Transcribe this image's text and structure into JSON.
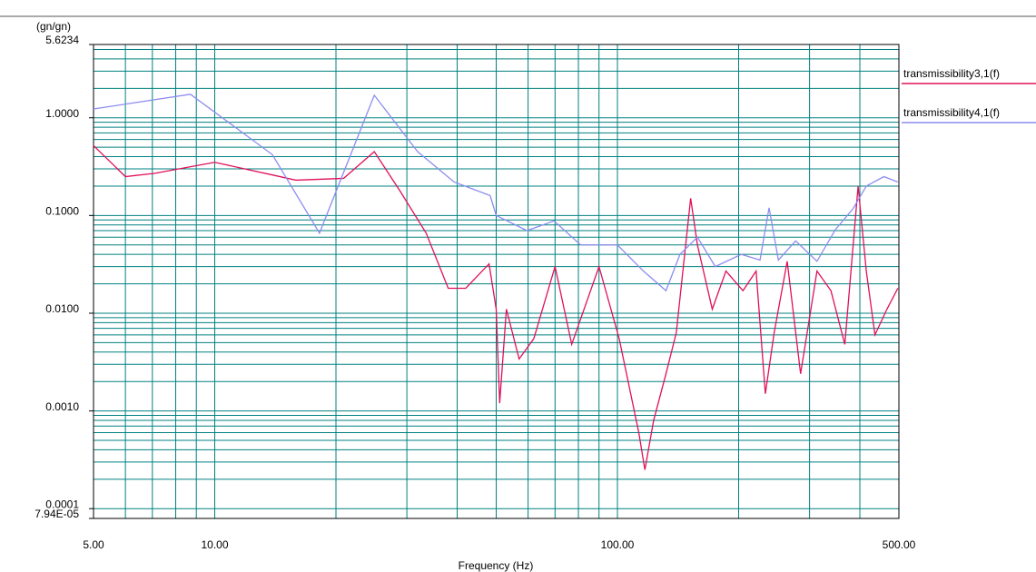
{
  "chart_data": {
    "type": "line",
    "y_label": "(gn/gn)",
    "x_label": "Frequency (Hz)",
    "log_x": true,
    "log_y": true,
    "grid": true,
    "grid_color": "#008080",
    "legend_position": "right",
    "xlim": [
      5,
      500
    ],
    "xticks": [
      {
        "value": 5,
        "label": "5.00"
      },
      {
        "value": 10,
        "label": "10.00"
      },
      {
        "value": 100,
        "label": "100.00"
      },
      {
        "value": 500,
        "label": "500.00"
      }
    ],
    "x_minor_ticks": [
      6,
      7,
      8,
      9,
      20,
      30,
      40,
      50,
      60,
      70,
      80,
      90,
      200,
      300,
      400
    ],
    "ylim": [
      7.94e-05,
      5.6234
    ],
    "yticks": [
      {
        "value": 7.94e-05,
        "label": "7.94E-05"
      },
      {
        "value": 0.0001,
        "label": "0.0001"
      },
      {
        "value": 0.001,
        "label": "0.0010"
      },
      {
        "value": 0.01,
        "label": "0.0100"
      },
      {
        "value": 0.1,
        "label": "0.1000"
      },
      {
        "value": 1,
        "label": "1.0000"
      },
      5.6234
    ],
    "y_minor_ticks": [
      0.0002,
      0.0003,
      0.0004,
      0.0005,
      0.0006,
      0.0007,
      0.0008,
      0.0009,
      0.002,
      0.003,
      0.004,
      0.005,
      0.006,
      0.007,
      0.008,
      0.009,
      0.02,
      0.03,
      0.04,
      0.05,
      0.06,
      0.07,
      0.08,
      0.09,
      0.2,
      0.3,
      0.4,
      0.5,
      0.6,
      0.7,
      0.8,
      0.9,
      2,
      3,
      4,
      5
    ],
    "series": [
      {
        "name": "transmissibility3,1(f)",
        "color": "#e0105a",
        "x": [
          5,
          6,
          7.1,
          10,
          13.9,
          15.9,
          20.9,
          24.9,
          28.8,
          33.5,
          38,
          42,
          48,
          50,
          51,
          53,
          57,
          62,
          70,
          77,
          90,
          101,
          113,
          117,
          123,
          132,
          140,
          152,
          158,
          172,
          186,
          205,
          221,
          233,
          245,
          264,
          285,
          313,
          339,
          367,
          396,
          415,
          436,
          467,
          497
        ],
        "values": [
          0.52,
          0.25,
          0.27,
          0.35,
          0.26,
          0.23,
          0.24,
          0.45,
          0.18,
          0.066,
          0.018,
          0.018,
          0.032,
          0.011,
          0.0012,
          0.011,
          0.0034,
          0.0055,
          0.03,
          0.0048,
          0.03,
          0.0055,
          0.0006,
          0.00025,
          0.0008,
          0.0024,
          0.0063,
          0.15,
          0.05,
          0.011,
          0.027,
          0.017,
          0.027,
          0.0015,
          0.0063,
          0.034,
          0.0024,
          0.027,
          0.017,
          0.0048,
          0.2,
          0.027,
          0.006,
          0.011,
          0.018
        ]
      },
      {
        "name": "transmissibility4,1(f)",
        "color": "#8c8cf0",
        "x": [
          5,
          8.7,
          13.9,
          18.2,
          24.9,
          31.9,
          39.3,
          48.3,
          50,
          59.6,
          69.6,
          81,
          100,
          116,
          132,
          143,
          158,
          175,
          203,
          226,
          238,
          251,
          277,
          313,
          348,
          385,
          415,
          459,
          497
        ],
        "values": [
          1.23,
          1.74,
          0.42,
          0.066,
          1.7,
          0.45,
          0.22,
          0.16,
          0.1,
          0.07,
          0.088,
          0.05,
          0.05,
          0.027,
          0.017,
          0.04,
          0.06,
          0.03,
          0.04,
          0.035,
          0.12,
          0.035,
          0.055,
          0.034,
          0.072,
          0.118,
          0.2,
          0.25,
          0.22
        ]
      }
    ]
  }
}
